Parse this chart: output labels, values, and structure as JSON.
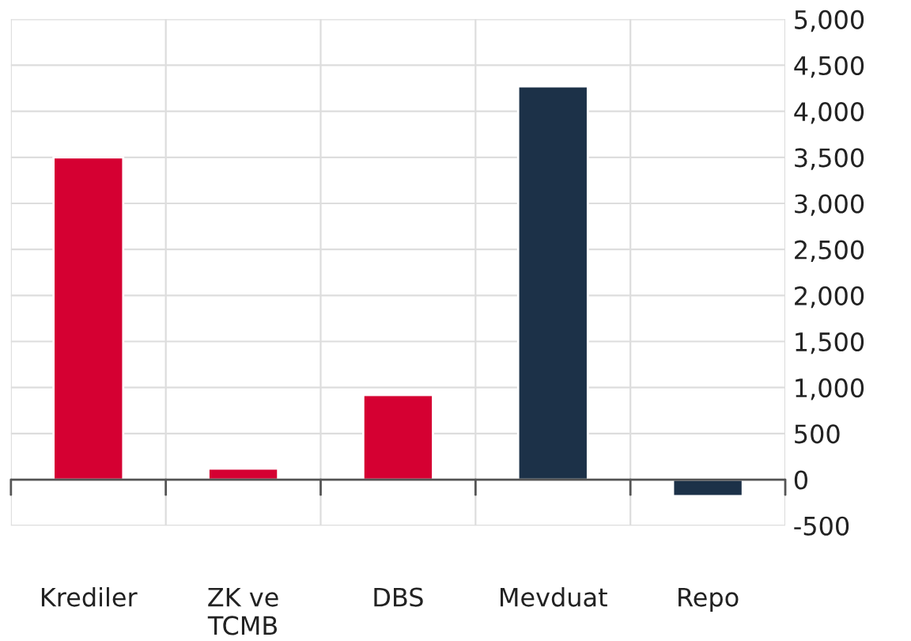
{
  "chart_data": {
    "type": "bar",
    "categories": [
      "Krediler",
      "ZK ve\nTCMB",
      "DBS",
      "Mevduat",
      "Repo"
    ],
    "values": [
      3500,
      120,
      920,
      4270,
      -180
    ],
    "colors": [
      "#d50032",
      "#d50032",
      "#d50032",
      "#1c3148",
      "#1c3148"
    ],
    "ylim": [
      -500,
      5000
    ],
    "yticks": [
      {
        "value": -500,
        "label": "-500"
      },
      0,
      500,
      {
        "value": 1000,
        "label": "1,000"
      },
      {
        "value": 1500,
        "label": "1,500"
      },
      {
        "value": 2000,
        "label": "2,000"
      },
      {
        "value": 2500,
        "label": "2,500"
      },
      {
        "value": 3000,
        "label": "3,000"
      },
      {
        "value": 3500,
        "label": "3,500"
      },
      {
        "value": 4000,
        "label": "4,000"
      },
      {
        "value": 4500,
        "label": "4,500"
      },
      {
        "value": 5000,
        "label": "5,000"
      }
    ],
    "grid": true,
    "legend": false
  }
}
